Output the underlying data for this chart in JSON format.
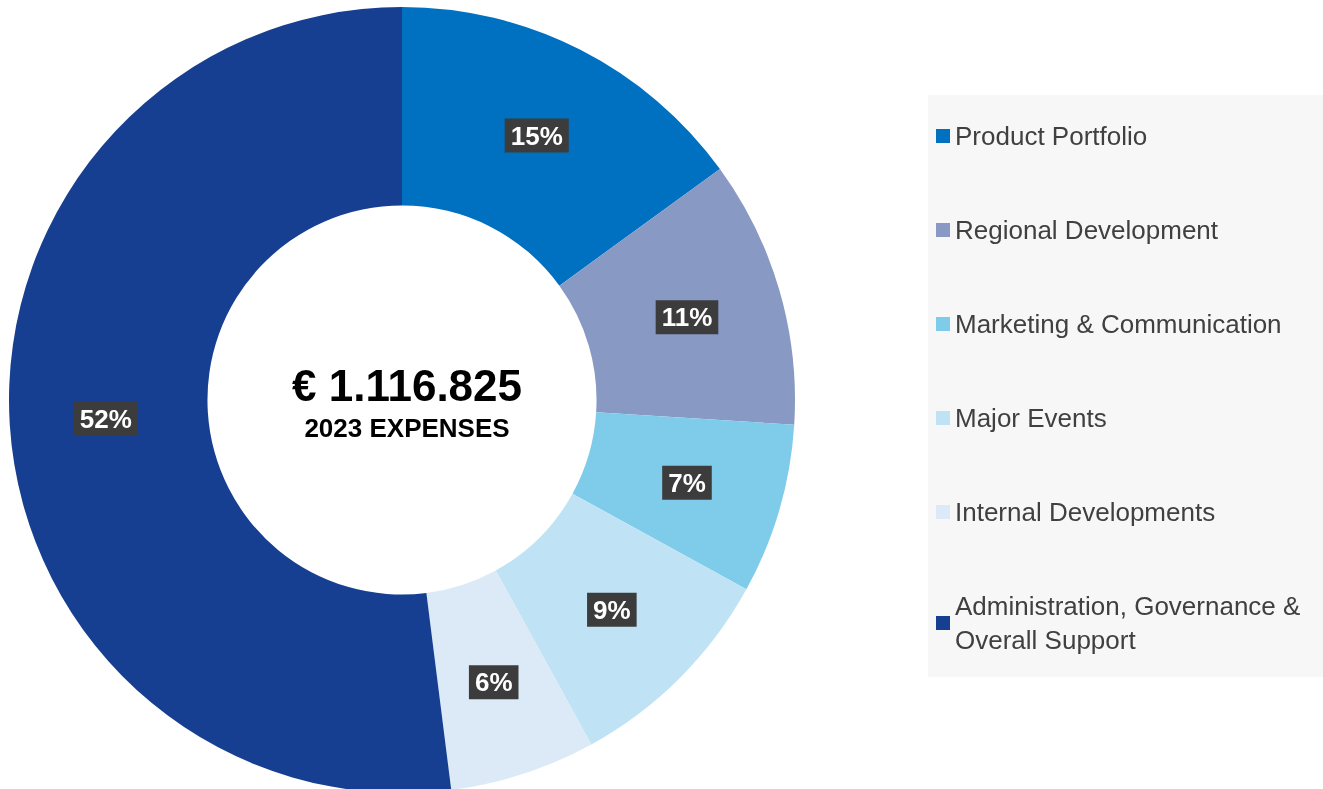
{
  "chart_data": {
    "type": "donut",
    "title": "€ 1.116.825",
    "subtitle": "2023 EXPENSES",
    "categories": [
      "Product Portfolio",
      "Regional Development",
      "Marketing & Communication",
      "Major Events",
      "Internal Developments",
      "Administration, Governance & Overall Support"
    ],
    "values": [
      15,
      11,
      7,
      9,
      6,
      52
    ],
    "value_labels": [
      "15%",
      "11%",
      "7%",
      "9%",
      "6%",
      "52%"
    ],
    "colors": [
      "#0070c0",
      "#8899c4",
      "#7fcbea",
      "#bfe3f4",
      "#dce9f6",
      "#173f91"
    ],
    "legend": "right"
  }
}
